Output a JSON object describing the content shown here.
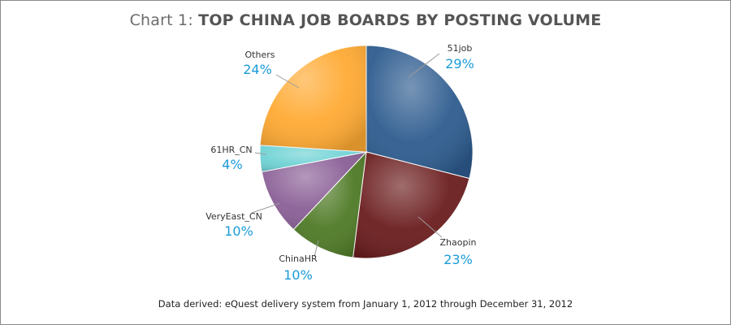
{
  "header": {
    "title_prefix": "Chart 1: ",
    "title_main": "TOP CHINA JOB BOARDS BY POSTING VOLUME"
  },
  "footer": {
    "note": "Data derived: eQuest delivery system from January 1, 2012 through December 31, 2012"
  },
  "chart_data": {
    "type": "pie",
    "title": "Chart 1: TOP CHINA JOB BOARDS BY POSTING VOLUME",
    "labels": [
      "51job",
      "Zhaopin",
      "ChinaHR",
      "VeryEast_CN",
      "61HR_CN",
      "Others"
    ],
    "values": [
      29,
      23,
      10,
      10,
      4,
      24
    ],
    "value_labels": [
      "29%",
      "23%",
      "10%",
      "10%",
      "4%",
      "24%"
    ],
    "colors": [
      "#2e5c8f",
      "#6b1d1e",
      "#4f7a26",
      "#8a5f96",
      "#6fd2d4",
      "#ffaa33"
    ],
    "start_angle_deg": 0,
    "direction": "clockwise",
    "legend": "none",
    "label_color": "#1a9bd7"
  }
}
